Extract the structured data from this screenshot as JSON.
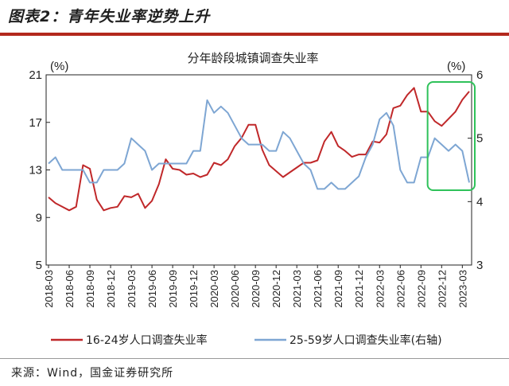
{
  "figure": {
    "title": "图表2：青年失业率逆势上升",
    "source": "来源：Wind，国金证券研究所"
  },
  "colors": {
    "youth": "#c0282a",
    "adult": "#7ea6d3",
    "highlight": "#2fc25a",
    "rule": "#b3281d"
  },
  "chart_data": {
    "type": "line",
    "title": "分年龄段城镇调查失业率",
    "left_unit": "(%)",
    "right_unit": "(%)",
    "ylim_left": [
      5,
      21
    ],
    "yticks_left": [
      "5",
      "9",
      "13",
      "17",
      "21"
    ],
    "ylim_right": [
      3,
      6
    ],
    "yticks_right": [
      "3",
      "4",
      "5",
      "6"
    ],
    "x_ticks": [
      "2018-03",
      "2018-06",
      "2018-09",
      "2018-12",
      "2019-03",
      "2019-06",
      "2019-09",
      "2019-12",
      "2020-03",
      "2020-06",
      "2020-09",
      "2020-12",
      "2021-03",
      "2021-06",
      "2021-09",
      "2021-12",
      "2022-03",
      "2022-06",
      "2022-09",
      "2022-12",
      "2023-03"
    ],
    "x": [
      "2018-03",
      "2018-04",
      "2018-05",
      "2018-06",
      "2018-07",
      "2018-08",
      "2018-09",
      "2018-10",
      "2018-11",
      "2018-12",
      "2019-01",
      "2019-02",
      "2019-03",
      "2019-04",
      "2019-05",
      "2019-06",
      "2019-07",
      "2019-08",
      "2019-09",
      "2019-10",
      "2019-11",
      "2019-12",
      "2020-01",
      "2020-02",
      "2020-03",
      "2020-04",
      "2020-05",
      "2020-06",
      "2020-07",
      "2020-08",
      "2020-09",
      "2020-10",
      "2020-11",
      "2020-12",
      "2021-01",
      "2021-02",
      "2021-03",
      "2021-04",
      "2021-05",
      "2021-06",
      "2021-07",
      "2021-08",
      "2021-09",
      "2021-10",
      "2021-11",
      "2021-12",
      "2022-01",
      "2022-02",
      "2022-03",
      "2022-04",
      "2022-05",
      "2022-06",
      "2022-07",
      "2022-08",
      "2022-09",
      "2022-10",
      "2022-11",
      "2022-12",
      "2023-01",
      "2023-02",
      "2023-03",
      "2023-04"
    ],
    "series": [
      {
        "name": "16-24岁人口调查失业率",
        "axis": "left",
        "values": [
          10.7,
          10.2,
          9.9,
          9.6,
          9.9,
          13.4,
          13.1,
          10.5,
          9.6,
          9.8,
          9.9,
          10.8,
          10.7,
          11.0,
          9.8,
          10.4,
          11.8,
          13.9,
          13.1,
          13.0,
          12.6,
          12.7,
          12.4,
          12.6,
          13.6,
          13.4,
          13.9,
          15.0,
          15.7,
          16.8,
          16.8,
          14.7,
          13.4,
          12.9,
          12.4,
          12.8,
          13.2,
          13.6,
          13.6,
          13.8,
          15.4,
          16.2,
          15.0,
          14.6,
          14.1,
          14.3,
          14.3,
          15.4,
          15.3,
          16.0,
          18.2,
          18.4,
          19.3,
          19.9,
          17.9,
          17.9,
          17.1,
          16.7,
          17.3,
          17.9,
          18.9,
          19.6
        ]
      },
      {
        "name": "25-59岁人口调查失业率(右轴)",
        "axis": "right",
        "values": [
          4.6,
          4.7,
          4.5,
          4.5,
          4.5,
          4.5,
          4.3,
          4.3,
          4.5,
          4.5,
          4.5,
          4.6,
          5.0,
          4.9,
          4.8,
          4.5,
          4.6,
          4.6,
          4.6,
          4.6,
          4.6,
          4.8,
          4.8,
          5.6,
          5.4,
          5.5,
          5.4,
          5.2,
          5.0,
          4.9,
          4.9,
          4.9,
          4.8,
          4.8,
          5.1,
          5.0,
          4.8,
          4.6,
          4.5,
          4.2,
          4.2,
          4.3,
          4.2,
          4.2,
          4.3,
          4.4,
          4.7,
          4.9,
          5.3,
          5.4,
          5.2,
          4.5,
          4.3,
          4.3,
          4.7,
          4.7,
          5.0,
          4.9,
          4.8,
          4.9,
          4.8,
          4.3
        ]
      }
    ],
    "legend_position": "bottom",
    "grid": false
  }
}
